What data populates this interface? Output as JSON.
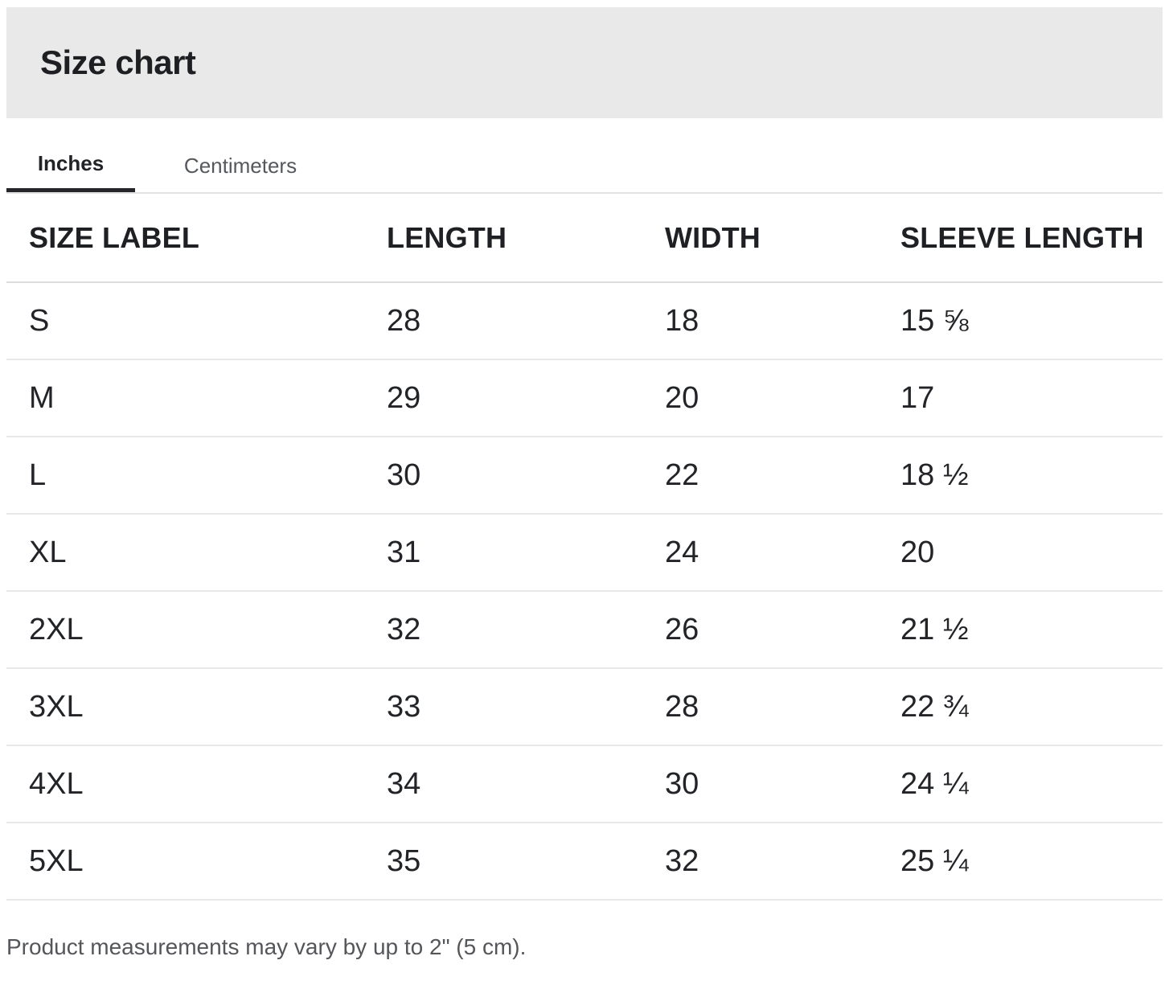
{
  "dialog": {
    "title": "Size chart"
  },
  "tabs": [
    {
      "label": "Inches",
      "active": true
    },
    {
      "label": "Centimeters",
      "active": false
    }
  ],
  "table": {
    "columns": [
      "SIZE LABEL",
      "LENGTH",
      "WIDTH",
      "SLEEVE LENGTH"
    ],
    "rows": [
      {
        "size_label": "S",
        "length": "28",
        "width": "18",
        "sleeve_length": "15 ⅝"
      },
      {
        "size_label": "M",
        "length": "29",
        "width": "20",
        "sleeve_length": "17"
      },
      {
        "size_label": "L",
        "length": "30",
        "width": "22",
        "sleeve_length": "18 ½"
      },
      {
        "size_label": "XL",
        "length": "31",
        "width": "24",
        "sleeve_length": "20"
      },
      {
        "size_label": "2XL",
        "length": "32",
        "width": "26",
        "sleeve_length": "21 ½"
      },
      {
        "size_label": "3XL",
        "length": "33",
        "width": "28",
        "sleeve_length": "22 ¾"
      },
      {
        "size_label": "4XL",
        "length": "34",
        "width": "30",
        "sleeve_length": "24 ¼"
      },
      {
        "size_label": "5XL",
        "length": "35",
        "width": "32",
        "sleeve_length": "25 ¼"
      }
    ]
  },
  "footer": {
    "note": "Product measurements may vary by up to 2\" (5 cm)."
  },
  "colors": {
    "header_bg": "#e9e9e9",
    "text_primary": "#222428",
    "text_secondary": "#55585c",
    "active_tab_underline": "#26262a",
    "header_border": "#dcdcdc",
    "row_border": "#e8e8e8"
  }
}
